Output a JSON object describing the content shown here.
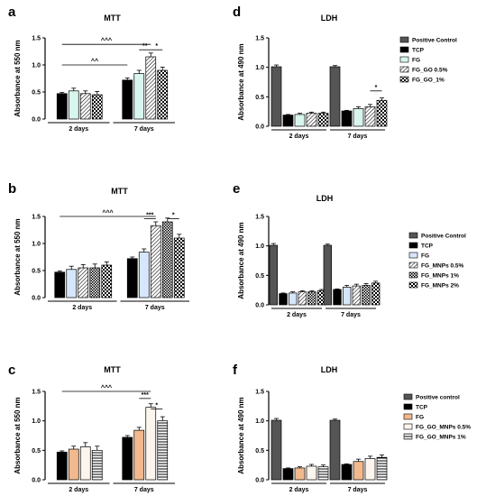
{
  "panels": {
    "a": {
      "letter": "a"
    },
    "b": {
      "letter": "b"
    },
    "c": {
      "letter": "c"
    },
    "d": {
      "letter": "d"
    },
    "e": {
      "letter": "e"
    },
    "f": {
      "letter": "f"
    }
  },
  "chart_data": [
    {
      "id": "a",
      "type": "bar",
      "title": "MTT",
      "ylabel": "Absorbance at 550 nm",
      "ylim": [
        0,
        1.5
      ],
      "yticks": [
        "0.0",
        "0.5",
        "1.0",
        "1.5"
      ],
      "groups": [
        "2 days",
        "7 days"
      ],
      "series": [
        {
          "name": "TCP",
          "values": [
            0.47,
            0.72
          ],
          "errors": [
            0.02,
            0.04
          ]
        },
        {
          "name": "FG",
          "values": [
            0.52,
            0.84
          ],
          "errors": [
            0.05,
            0.06
          ]
        },
        {
          "name": "FG_GO 0.5%",
          "values": [
            0.47,
            1.15
          ],
          "errors": [
            0.05,
            0.07
          ]
        },
        {
          "name": "FG_GO 1%",
          "values": [
            0.45,
            0.9
          ],
          "errors": [
            0.06,
            0.06
          ]
        }
      ],
      "annotations": [
        {
          "text": "^^^",
          "from": [
            0,
            0
          ],
          "to": [
            1,
            2
          ],
          "at": 1.38
        },
        {
          "text": "^^",
          "from": [
            0,
            0
          ],
          "to": [
            1,
            0
          ],
          "at": 1.0
        },
        {
          "text": "**",
          "from": [
            1,
            1
          ],
          "to": [
            1,
            2
          ],
          "at": 1.28
        },
        {
          "text": "*",
          "from": [
            1,
            2
          ],
          "to": [
            1,
            3
          ],
          "at": 1.28
        }
      ]
    },
    {
      "id": "b",
      "type": "bar",
      "title": "MTT",
      "ylabel": "Absorbance at 550 nm",
      "ylim": [
        0,
        1.5
      ],
      "yticks": [
        "0.0",
        "0.5",
        "1.0",
        "1.5"
      ],
      "groups": [
        "2 days",
        "7 days"
      ],
      "series": [
        {
          "name": "TCP",
          "values": [
            0.47,
            0.72
          ],
          "errors": [
            0.02,
            0.03
          ]
        },
        {
          "name": "FG",
          "values": [
            0.52,
            0.84
          ],
          "errors": [
            0.06,
            0.06
          ]
        },
        {
          "name": "FG_MNPs 0.5%",
          "values": [
            0.55,
            1.33
          ],
          "errors": [
            0.06,
            0.07
          ]
        },
        {
          "name": "FG_MNPs 1%",
          "values": [
            0.55,
            1.4
          ],
          "errors": [
            0.07,
            0.07
          ]
        },
        {
          "name": "FG_MNPs 2%",
          "values": [
            0.6,
            1.1
          ],
          "errors": [
            0.06,
            0.07
          ]
        }
      ],
      "annotations": [
        {
          "text": "^^^",
          "from": [
            0,
            0
          ],
          "to": [
            1,
            2
          ],
          "at": 1.5
        },
        {
          "text": "***",
          "from": [
            1,
            1
          ],
          "to": [
            1,
            2
          ],
          "at": 1.46
        },
        {
          "text": "*",
          "from": [
            1,
            3
          ],
          "to": [
            1,
            4
          ],
          "at": 1.46
        }
      ]
    },
    {
      "id": "c",
      "type": "bar",
      "title": "MTT",
      "ylabel": "Absorbance at 550 nm",
      "ylim": [
        0,
        1.5
      ],
      "yticks": [
        "0.0",
        "0.5",
        "1.0",
        "1.5"
      ],
      "groups": [
        "2 days",
        "7 days"
      ],
      "series": [
        {
          "name": "TCP",
          "values": [
            0.47,
            0.72
          ],
          "errors": [
            0.02,
            0.03
          ]
        },
        {
          "name": "FG",
          "values": [
            0.52,
            0.84
          ],
          "errors": [
            0.05,
            0.05
          ]
        },
        {
          "name": "FG_GO_MNPs 0.5%",
          "values": [
            0.56,
            1.23
          ],
          "errors": [
            0.07,
            0.06
          ]
        },
        {
          "name": "FG_GO_MNPs 1%",
          "values": [
            0.5,
            1.0
          ],
          "errors": [
            0.07,
            0.07
          ]
        }
      ],
      "annotations": [
        {
          "text": "^^^",
          "from": [
            0,
            0
          ],
          "to": [
            1,
            2
          ],
          "at": 1.5
        },
        {
          "text": "***",
          "from": [
            1,
            1
          ],
          "to": [
            1,
            2
          ],
          "at": 1.38
        },
        {
          "text": "*",
          "from": [
            1,
            2
          ],
          "to": [
            1,
            3
          ],
          "at": 1.2
        }
      ]
    },
    {
      "id": "d",
      "type": "bar",
      "title": "LDH",
      "ylabel": "Absorbance at 490 nm",
      "ylim": [
        0,
        1.5
      ],
      "yticks": [
        "0.0",
        "0.5",
        "1.0",
        "1.5"
      ],
      "groups": [
        "2 days",
        "7 days"
      ],
      "series": [
        {
          "name": "Positive Control",
          "values": [
            1.01,
            1.01
          ],
          "errors": [
            0.03,
            0.02
          ]
        },
        {
          "name": "TCP",
          "values": [
            0.19,
            0.26
          ],
          "errors": [
            0.01,
            0.01
          ]
        },
        {
          "name": "FG",
          "values": [
            0.2,
            0.3
          ],
          "errors": [
            0.02,
            0.03
          ]
        },
        {
          "name": "FG_GO 0.5%",
          "values": [
            0.22,
            0.33
          ],
          "errors": [
            0.02,
            0.04
          ]
        },
        {
          "name": "FG_GO_1%",
          "values": [
            0.22,
            0.44
          ],
          "errors": [
            0.02,
            0.04
          ]
        }
      ],
      "annotations": [
        {
          "text": "*",
          "from": [
            1,
            3
          ],
          "to": [
            1,
            4
          ],
          "at": 0.6
        }
      ]
    },
    {
      "id": "e",
      "type": "bar",
      "title": "LDH",
      "ylabel": "Absorbance at 490 nm",
      "ylim": [
        0,
        1.5
      ],
      "yticks": [
        "0.0",
        "0.5",
        "1.0",
        "1.5"
      ],
      "groups": [
        "2 days",
        "7 days"
      ],
      "series": [
        {
          "name": "Positive Control",
          "values": [
            1.01,
            1.01
          ],
          "errors": [
            0.03,
            0.02
          ]
        },
        {
          "name": "TCP",
          "values": [
            0.19,
            0.26
          ],
          "errors": [
            0.01,
            0.01
          ]
        },
        {
          "name": "FG",
          "values": [
            0.2,
            0.3
          ],
          "errors": [
            0.02,
            0.03
          ]
        },
        {
          "name": "FG_MNPs 0.5%",
          "values": [
            0.22,
            0.32
          ],
          "errors": [
            0.02,
            0.03
          ]
        },
        {
          "name": "FG_MNPs 1%",
          "values": [
            0.22,
            0.33
          ],
          "errors": [
            0.02,
            0.03
          ]
        },
        {
          "name": "FG_MNPs 2%",
          "values": [
            0.24,
            0.37
          ],
          "errors": [
            0.02,
            0.03
          ]
        }
      ],
      "annotations": []
    },
    {
      "id": "f",
      "type": "bar",
      "title": "LDH",
      "ylabel": "Absorbance at 490 nm",
      "ylim": [
        0,
        1.5
      ],
      "yticks": [
        "0.0",
        "0.5",
        "1.0",
        "1.5"
      ],
      "groups": [
        "2 days",
        "7 days"
      ],
      "series": [
        {
          "name": "Positive control",
          "values": [
            1.01,
            1.01
          ],
          "errors": [
            0.03,
            0.02
          ]
        },
        {
          "name": "TCP",
          "values": [
            0.19,
            0.26
          ],
          "errors": [
            0.01,
            0.01
          ]
        },
        {
          "name": "FG",
          "values": [
            0.2,
            0.31
          ],
          "errors": [
            0.02,
            0.04
          ]
        },
        {
          "name": "FG_GO_MNPs 0.5%",
          "values": [
            0.23,
            0.36
          ],
          "errors": [
            0.03,
            0.04
          ]
        },
        {
          "name": "FG_GO_MNPs 1%",
          "values": [
            0.22,
            0.38
          ],
          "errors": [
            0.03,
            0.04
          ]
        }
      ],
      "annotations": []
    }
  ],
  "styles": {
    "a": [
      "#000000",
      "#d8f5ee",
      "hatch",
      "check"
    ],
    "b": [
      "#000000",
      "#d6e6fb",
      "hatch",
      "check-dense",
      "check"
    ],
    "c": [
      "#000000",
      "#f2b98e",
      "#fbf5ee",
      "hstripe"
    ],
    "d": [
      "#555555",
      "#000000",
      "#d8f5ee",
      "hatch",
      "check"
    ],
    "e": [
      "#555555",
      "#000000",
      "#d6e6fb",
      "hatch",
      "check-dense",
      "check"
    ],
    "f": [
      "#555555",
      "#000000",
      "#f2b98e",
      "#fbf5ee",
      "hstripe"
    ]
  }
}
